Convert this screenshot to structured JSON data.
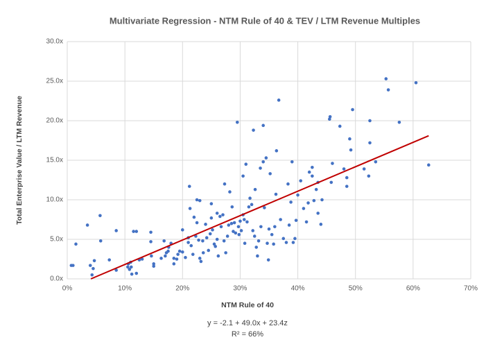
{
  "chart_data": {
    "type": "scatter",
    "title": "Multivariate Regression - NTM Rule of 40 & TEV / LTM Revenue Multiples",
    "x_label": "NTM Rule of 40",
    "y_label": "Total Enterprise Value / LTM Revenue",
    "annotations": [
      "y = -2.1 + 49.0x + 23.4z",
      "R² = 66%"
    ],
    "xlim": [
      0,
      70
    ],
    "ylim": [
      0,
      30
    ],
    "xticks": [
      {
        "value": 0,
        "label": "0%"
      },
      {
        "value": 10,
        "label": "10%"
      },
      {
        "value": 20,
        "label": "20%"
      },
      {
        "value": 30,
        "label": "30%"
      },
      {
        "value": 40,
        "label": "40%"
      },
      {
        "value": 50,
        "label": "50%"
      },
      {
        "value": 60,
        "label": "60%"
      },
      {
        "value": 70,
        "label": "70%"
      }
    ],
    "yticks": [
      {
        "value": 0,
        "label": "0.0x"
      },
      {
        "value": 5,
        "label": "5.0x"
      },
      {
        "value": 10,
        "label": "10.0x"
      },
      {
        "value": 15,
        "label": "15.0x"
      },
      {
        "value": 20,
        "label": "20.0x"
      },
      {
        "value": 25,
        "label": "25.0x"
      },
      {
        "value": 30,
        "label": "30.0x"
      }
    ],
    "grid": true,
    "color": "#4472c4",
    "x": [
      0.7,
      1.0,
      1.5,
      3.5,
      4.0,
      4.3,
      4.5,
      4.7,
      5.7,
      5.8,
      7.3,
      8.5,
      8.5,
      10.5,
      10.6,
      10.8,
      11.0,
      11.1,
      11.2,
      11.5,
      12.0,
      12.0,
      12.5,
      13.0,
      14.5,
      14.5,
      14.6,
      15.0,
      15.0,
      16.3,
      16.8,
      17.0,
      17.2,
      17.5,
      17.6,
      18.0,
      18.5,
      18.5,
      19.0,
      19.2,
      19.5,
      20.0,
      20.0,
      20.5,
      21.0,
      21.0,
      21.2,
      21.3,
      21.5,
      21.8,
      22.0,
      22.3,
      22.5,
      22.5,
      22.8,
      23.0,
      23.0,
      23.2,
      23.5,
      23.6,
      24.0,
      24.2,
      24.5,
      24.8,
      25.0,
      25.0,
      25.2,
      25.5,
      25.7,
      26.0,
      26.0,
      26.2,
      26.5,
      26.7,
      27.0,
      27.2,
      27.3,
      27.5,
      27.8,
      28.0,
      28.2,
      28.5,
      28.6,
      28.8,
      29.0,
      29.2,
      29.5,
      29.7,
      29.8,
      30.0,
      30.2,
      30.5,
      30.5,
      30.7,
      30.8,
      31.0,
      31.2,
      31.5,
      31.7,
      32.0,
      32.2,
      32.3,
      32.5,
      32.6,
      32.8,
      33.0,
      33.2,
      33.5,
      33.6,
      34.0,
      34.0,
      34.2,
      34.5,
      34.7,
      34.9,
      35.0,
      35.2,
      35.5,
      35.8,
      36.0,
      36.2,
      36.3,
      36.7,
      37.0,
      37.5,
      38.0,
      38.3,
      38.5,
      38.8,
      39.0,
      39.2,
      39.5,
      39.7,
      40.0,
      40.5,
      41.0,
      41.5,
      41.8,
      42.0,
      42.5,
      42.5,
      42.8,
      43.2,
      43.5,
      43.5,
      44.0,
      44.2,
      45.5,
      45.6,
      45.8,
      46.0,
      47.3,
      48.0,
      48.5,
      48.5,
      49.0,
      49.2,
      49.5,
      51.5,
      52.3,
      52.5,
      52.5,
      53.5,
      55.3,
      55.7,
      57.6,
      60.5,
      62.7
    ],
    "values": [
      1.7,
      1.7,
      4.4,
      6.8,
      1.7,
      0.5,
      1.3,
      2.3,
      8.0,
      4.8,
      2.4,
      6.1,
      1.1,
      1.5,
      1.9,
      1.2,
      2.1,
      1.5,
      0.6,
      6.0,
      6.0,
      0.7,
      2.4,
      2.5,
      5.9,
      4.7,
      2.9,
      1.9,
      1.6,
      2.6,
      4.8,
      2.9,
      3.3,
      3.5,
      4.0,
      4.5,
      1.9,
      2.6,
      2.5,
      3.1,
      3.5,
      3.4,
      6.2,
      2.7,
      4.6,
      5.2,
      11.7,
      8.9,
      4.2,
      3.1,
      7.8,
      5.4,
      7.1,
      10.0,
      4.9,
      9.9,
      2.6,
      2.2,
      4.8,
      3.3,
      6.9,
      5.2,
      3.6,
      5.7,
      7.7,
      9.5,
      6.2,
      4.4,
      4.1,
      8.3,
      5.0,
      2.9,
      7.9,
      6.6,
      8.1,
      4.8,
      12.0,
      3.3,
      5.4,
      6.8,
      11.0,
      7.0,
      9.1,
      6.0,
      7.1,
      5.8,
      19.8,
      6.6,
      5.6,
      7.3,
      6.1,
      13.0,
      8.1,
      7.5,
      4.5,
      14.5,
      7.2,
      9.1,
      10.2,
      9.4,
      6.1,
      18.8,
      5.4,
      11.3,
      4.0,
      2.9,
      4.8,
      14.0,
      6.6,
      14.8,
      19.4,
      9.0,
      15.3,
      4.5,
      2.4,
      6.3,
      13.3,
      5.6,
      4.4,
      6.6,
      10.7,
      16.2,
      22.6,
      7.5,
      5.1,
      4.6,
      12.0,
      6.8,
      9.7,
      14.8,
      4.6,
      5.1,
      7.4,
      10.6,
      12.4,
      8.9,
      7.2,
      9.6,
      13.5,
      14.1,
      13.0,
      9.9,
      11.3,
      8.3,
      12.2,
      6.9,
      10.0,
      20.2,
      20.5,
      12.2,
      14.6,
      19.3,
      13.9,
      12.8,
      11.7,
      17.7,
      16.3,
      21.4,
      13.9,
      13.0,
      20.0,
      17.2,
      14.8,
      25.3,
      23.9,
      19.8,
      24.8,
      14.4
    ],
    "trendline": {
      "color": "#c00000",
      "x": [
        4.1,
        62.7
      ],
      "values": [
        0,
        18.1
      ]
    }
  }
}
